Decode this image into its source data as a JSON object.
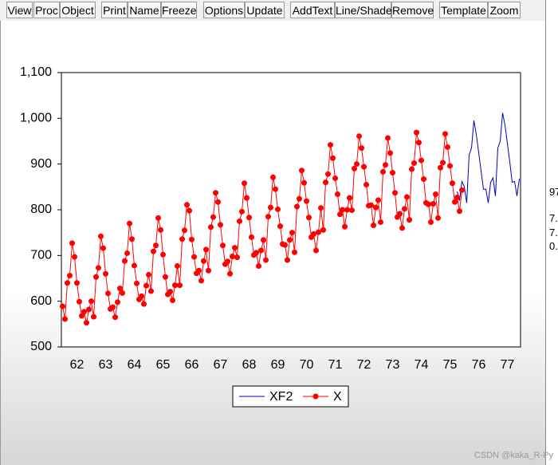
{
  "toolbar": {
    "buttons": [
      "View",
      "Proc",
      "Object",
      "Print",
      "Name",
      "Freeze",
      "Options",
      "Update",
      "AddText",
      "Line/Shade",
      "Remove",
      "Template",
      "Zoom"
    ]
  },
  "side_fragments": [
    "97",
    "7.",
    "7.",
    "0."
  ],
  "watermark": "CSDN @kaka_R-Py",
  "chart_data": {
    "type": "line",
    "categories": [
      null,
      null,
      null,
      null,
      null,
      null,
      "62",
      null,
      null,
      null,
      null,
      null,
      null,
      null,
      null,
      null,
      null,
      null,
      "63",
      null,
      null,
      null,
      null,
      null,
      null,
      null,
      null,
      null,
      null,
      null,
      "64",
      null,
      null,
      null,
      null,
      null,
      null,
      null,
      null,
      null,
      null,
      null,
      "65",
      null,
      null,
      null,
      null,
      null,
      null,
      null,
      null,
      null,
      null,
      null,
      "66",
      null,
      null,
      null,
      null,
      null,
      null,
      null,
      null,
      null,
      null,
      null,
      "67",
      null,
      null,
      null,
      null,
      null,
      null,
      null,
      null,
      null,
      null,
      null,
      "68",
      null,
      null,
      null,
      null,
      null,
      null,
      null,
      null,
      null,
      null,
      null,
      "69",
      null,
      null,
      null,
      null,
      null,
      null,
      null,
      null,
      null,
      null,
      null,
      "70",
      null,
      null,
      null,
      null,
      null,
      null,
      null,
      null,
      null,
      null,
      null,
      "71",
      null,
      null,
      null,
      null,
      null,
      null,
      null,
      null,
      null,
      null,
      null,
      "72",
      null,
      null,
      null,
      null,
      null,
      null,
      null,
      null,
      null,
      null,
      null,
      "73",
      null,
      null,
      null,
      null,
      null,
      null,
      null,
      null,
      null,
      null,
      null,
      "74",
      null,
      null,
      null,
      null,
      null,
      null,
      null,
      null,
      null,
      null,
      null,
      "75",
      null,
      null,
      null,
      null,
      null,
      null,
      null,
      null,
      null,
      null,
      null,
      "76",
      null,
      null,
      null,
      null,
      null,
      null,
      null,
      null,
      null,
      null,
      null,
      "77",
      null,
      null,
      null,
      null,
      null
    ],
    "series": [
      {
        "name": "XF2",
        "color": "#0000c0",
        "markers": false,
        "values": [
          null,
          null,
          null,
          null,
          null,
          null,
          null,
          null,
          null,
          null,
          null,
          null,
          null,
          null,
          null,
          null,
          null,
          null,
          null,
          null,
          null,
          null,
          null,
          null,
          null,
          null,
          null,
          null,
          null,
          null,
          null,
          null,
          null,
          null,
          null,
          null,
          null,
          null,
          null,
          null,
          null,
          null,
          null,
          null,
          null,
          null,
          null,
          null,
          null,
          null,
          null,
          null,
          null,
          null,
          null,
          null,
          null,
          null,
          null,
          null,
          null,
          null,
          null,
          null,
          null,
          null,
          null,
          null,
          null,
          null,
          null,
          null,
          null,
          null,
          null,
          null,
          null,
          null,
          null,
          null,
          null,
          null,
          null,
          null,
          null,
          null,
          null,
          null,
          null,
          null,
          null,
          null,
          null,
          null,
          null,
          null,
          null,
          null,
          null,
          null,
          null,
          null,
          null,
          null,
          null,
          null,
          null,
          null,
          null,
          null,
          null,
          null,
          null,
          null,
          null,
          null,
          null,
          null,
          null,
          null,
          null,
          null,
          null,
          null,
          null,
          null,
          null,
          null,
          null,
          null,
          null,
          null,
          null,
          null,
          null,
          null,
          null,
          null,
          null,
          null,
          null,
          null,
          null,
          null,
          null,
          null,
          null,
          null,
          null,
          null,
          null,
          null,
          null,
          null,
          null,
          null,
          null,
          null,
          null,
          null,
          null,
          null,
          null,
          null,
          null,
          840,
          820,
          862,
          850,
          815,
          920,
          935,
          995,
          965,
          925,
          885,
          845,
          845,
          815,
          860,
          870,
          830,
          935,
          950,
          1012,
          985,
          945,
          905,
          860,
          862,
          830,
          868
        ]
      },
      {
        "name": "X",
        "color": "#ff0000",
        "markers": true,
        "values": [
          589,
          561,
          640,
          656,
          727,
          697,
          640,
          599,
          568,
          577,
          553,
          582,
          600,
          566,
          653,
          673,
          742,
          716,
          660,
          617,
          583,
          587,
          565,
          598,
          628,
          618,
          688,
          705,
          770,
          736,
          678,
          639,
          604,
          611,
          594,
          634,
          658,
          622,
          709,
          722,
          782,
          756,
          702,
          653,
          615,
          621,
          602,
          635,
          677,
          635,
          736,
          755,
          811,
          798,
          735,
          697,
          661,
          667,
          645,
          688,
          713,
          667,
          762,
          784,
          837,
          817,
          767,
          722,
          681,
          687,
          660,
          698,
          717,
          696,
          775,
          796,
          858,
          826,
          783,
          740,
          701,
          706,
          677,
          711,
          734,
          690,
          785,
          805,
          871,
          845,
          801,
          764,
          725,
          723,
          690,
          734,
          750,
          707,
          807,
          824,
          886,
          859,
          819,
          783,
          740,
          747,
          711,
          751,
          804,
          756,
          860,
          878,
          942,
          913,
          869,
          834,
          790,
          800,
          763,
          800,
          826,
          799,
          890,
          900,
          961,
          935,
          894,
          855,
          809,
          810,
          766,
          805,
          821,
          773,
          883,
          898,
          957,
          924,
          881,
          837,
          784,
          791,
          760,
          802,
          828,
          778,
          889,
          902,
          969,
          947,
          908,
          867,
          815,
          812,
          773,
          813,
          834,
          782,
          892,
          903,
          966,
          937,
          896,
          858,
          817,
          827,
          797,
          843,
          null,
          null,
          null,
          null,
          null,
          null,
          null,
          null,
          null,
          null,
          null,
          null,
          null,
          null,
          null,
          null,
          null,
          null,
          null,
          null,
          null,
          null,
          null,
          null
        ]
      }
    ],
    "ylim": [
      500,
      1100
    ],
    "yticks": [
      500,
      600,
      700,
      800,
      900,
      {
        "value": 1000,
        "label": "1,000"
      },
      {
        "value": 1100,
        "label": "1,100"
      }
    ],
    "legend": "bottom"
  }
}
